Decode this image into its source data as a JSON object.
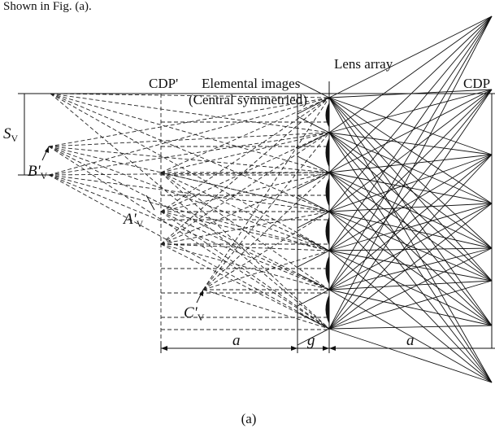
{
  "caption_top": "Shown in Fig. (a).",
  "labels": {
    "lens_array": "Lens array",
    "cdp_prime": "CDP'",
    "cdp": "CDP",
    "elemental_line1": "Elemental images",
    "elemental_line2": "(Central symmetried)",
    "s_main": "S",
    "s_sub": "V",
    "b_main": "B'",
    "b_sub": "V",
    "a_main": "A'",
    "a_sub": "V",
    "c_main": "C'",
    "c_sub": "V",
    "dim_a_left": "a",
    "dim_g": "g",
    "dim_a_right": "a"
  },
  "caption": "(a)"
}
